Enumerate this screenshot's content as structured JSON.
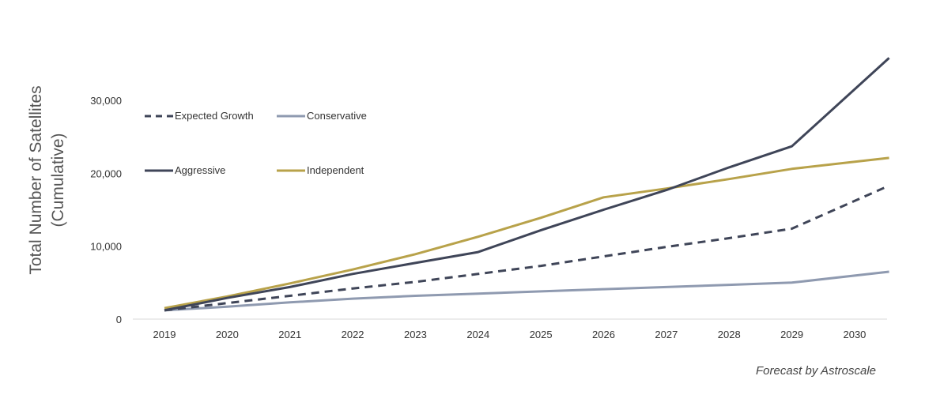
{
  "chart_data": {
    "type": "line",
    "ylabel_lines": [
      "Total Number of Satellites",
      "(Cumulative)"
    ],
    "footnote": "Forecast by Astroscale",
    "x": [
      "2019",
      "2020",
      "2021",
      "2022",
      "2023",
      "2024",
      "2025",
      "2026",
      "2027",
      "2028",
      "2029",
      "2030"
    ],
    "ylim": [
      0,
      35000
    ],
    "yticks": [
      0,
      10000,
      20000,
      30000
    ],
    "ytick_labels": [
      "0",
      "10,000",
      "20,000",
      "30,000"
    ],
    "grid": false,
    "x_end": 2030.55,
    "series": [
      {
        "name": "Expected Growth",
        "color": "#3f4558",
        "dash": true,
        "x": [
          2019,
          2020,
          2021,
          2022,
          2023,
          2024,
          2025,
          2026,
          2027,
          2028,
          2029,
          2030.55
        ],
        "values": [
          1200,
          2200,
          3200,
          4200,
          5100,
          6200,
          7300,
          8600,
          9900,
          11100,
          12400,
          18300
        ]
      },
      {
        "name": "Conservative",
        "color": "#8f9ab0",
        "dash": false,
        "x": [
          2019,
          2020,
          2021,
          2022,
          2023,
          2024,
          2025,
          2026,
          2027,
          2028,
          2029,
          2030.55
        ],
        "values": [
          1200,
          1700,
          2300,
          2800,
          3200,
          3500,
          3800,
          4100,
          4400,
          4700,
          5000,
          6500
        ]
      },
      {
        "name": "Aggressive",
        "color": "#3f4558",
        "dash": false,
        "x": [
          2019,
          2020,
          2021,
          2022,
          2023,
          2024,
          2025,
          2026,
          2027,
          2028,
          2029,
          2030.55
        ],
        "values": [
          1200,
          2900,
          4400,
          6200,
          7700,
          9200,
          12200,
          15000,
          17700,
          20800,
          23700,
          35800
        ]
      },
      {
        "name": "Independent",
        "color": "#b8a24a",
        "dash": false,
        "x": [
          2019,
          2020,
          2021,
          2022,
          2023,
          2024,
          2025,
          2026,
          2027,
          2028,
          2029,
          2030.55
        ],
        "values": [
          1500,
          3100,
          4900,
          6800,
          8900,
          11300,
          13900,
          16700,
          17900,
          19200,
          20600,
          22100
        ]
      }
    ]
  }
}
